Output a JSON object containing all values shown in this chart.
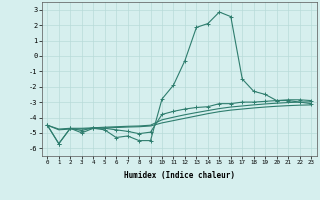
{
  "x": [
    0,
    1,
    2,
    3,
    4,
    5,
    6,
    7,
    8,
    9,
    10,
    11,
    12,
    13,
    14,
    15,
    16,
    17,
    18,
    19,
    20,
    21,
    22,
    23
  ],
  "line_peak": [
    -4.5,
    -5.7,
    -4.7,
    -5.0,
    -4.7,
    -4.8,
    -5.3,
    -5.2,
    -5.5,
    -5.5,
    -2.8,
    -1.9,
    -0.3,
    1.85,
    2.1,
    2.85,
    2.55,
    -1.5,
    -2.3,
    -2.5,
    -2.9,
    -2.9,
    -3.0,
    -3.1
  ],
  "line_flat": [
    -4.5,
    -5.7,
    -4.7,
    -4.85,
    -4.65,
    -4.7,
    -4.8,
    -4.9,
    -5.05,
    -4.95,
    -3.8,
    -3.6,
    -3.45,
    -3.35,
    -3.3,
    -3.1,
    -3.1,
    -3.0,
    -3.0,
    -2.95,
    -2.9,
    -2.85,
    -2.85,
    -2.9
  ],
  "line_smooth1": [
    -4.5,
    -4.8,
    -4.75,
    -4.75,
    -4.72,
    -4.68,
    -4.65,
    -4.62,
    -4.6,
    -4.55,
    -4.35,
    -4.2,
    -4.05,
    -3.9,
    -3.75,
    -3.62,
    -3.52,
    -3.45,
    -3.38,
    -3.32,
    -3.27,
    -3.23,
    -3.2,
    -3.18
  ],
  "line_smooth2": [
    -4.5,
    -4.75,
    -4.7,
    -4.7,
    -4.67,
    -4.63,
    -4.6,
    -4.57,
    -4.55,
    -4.5,
    -4.15,
    -3.98,
    -3.82,
    -3.68,
    -3.55,
    -3.42,
    -3.32,
    -3.25,
    -3.18,
    -3.12,
    -3.07,
    -3.03,
    -3.0,
    -2.98
  ],
  "color": "#2e7d6e",
  "bg_color": "#d6efee",
  "grid_color": "#b8dbd9",
  "xlabel": "Humidex (Indice chaleur)",
  "ylim": [
    -6.5,
    3.5
  ],
  "xlim": [
    -0.5,
    23.5
  ],
  "yticks": [
    -6,
    -5,
    -4,
    -3,
    -2,
    -1,
    0,
    1,
    2,
    3
  ],
  "xticks": [
    0,
    1,
    2,
    3,
    4,
    5,
    6,
    7,
    8,
    9,
    10,
    11,
    12,
    13,
    14,
    15,
    16,
    17,
    18,
    19,
    20,
    21,
    22,
    23
  ]
}
